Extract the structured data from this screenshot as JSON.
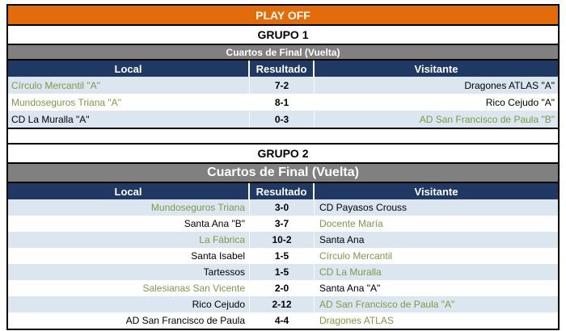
{
  "banner": {
    "title": "PLAY OFF"
  },
  "columns": {
    "local": "Local",
    "resultado": "Resultado",
    "visitante": "Visitante"
  },
  "colors": {
    "banner_orange": "#e36c0a",
    "header_navy": "#1f3864",
    "round_gray": "#808080",
    "row_blue": "#dce6f1",
    "winner_green": "#7d9b44"
  },
  "groups": [
    {
      "name": "GRUPO 1",
      "round": "Cuartos de Final (Vuelta)",
      "matches": [
        {
          "local": "Círculo Mercantil \"A\"",
          "score": "7-2",
          "visitante": "Dragones ATLAS \"A\"",
          "winner": "local"
        },
        {
          "local": "Mundoseguros Triana \"A\"",
          "score": "8-1",
          "visitante": "Rico Cejudo \"A\"",
          "winner": "local"
        },
        {
          "local": "CD La Muralla \"A\"",
          "score": "0-3",
          "visitante": "AD San Francisco de Paula \"B\"",
          "winner": "visitante"
        }
      ]
    },
    {
      "name": "GRUPO 2",
      "round": "Cuartos de Final (Vuelta)",
      "matches": [
        {
          "local": "Mundoseguros Triana",
          "score": "3-0",
          "visitante": "CD Payasos Crouss",
          "winner": "local"
        },
        {
          "local": "Santa Ana \"B\"",
          "score": "3-7",
          "visitante": "Docente María",
          "winner": "visitante"
        },
        {
          "local": "La Fábrica",
          "score": "10-2",
          "visitante": "Santa Ana",
          "winner": "local"
        },
        {
          "local": "Santa Isabel",
          "score": "1-5",
          "visitante": "Círculo Mercantil",
          "winner": "visitante"
        },
        {
          "local": "Tartessos",
          "score": "1-5",
          "visitante": "CD La Muralla",
          "winner": "visitante"
        },
        {
          "local": "Salesianas San Vicente",
          "score": "2-0",
          "visitante": "Santa Ana \"A\"",
          "winner": "local"
        },
        {
          "local": "Rico Cejudo",
          "score": "2-12",
          "visitante": "AD San Francisco de Paula \"A\"",
          "winner": "visitante"
        },
        {
          "local": "AD San Francisco de Paula",
          "score": "4-4",
          "visitante": "Dragones ATLAS",
          "winner": "visitante"
        }
      ]
    }
  ]
}
